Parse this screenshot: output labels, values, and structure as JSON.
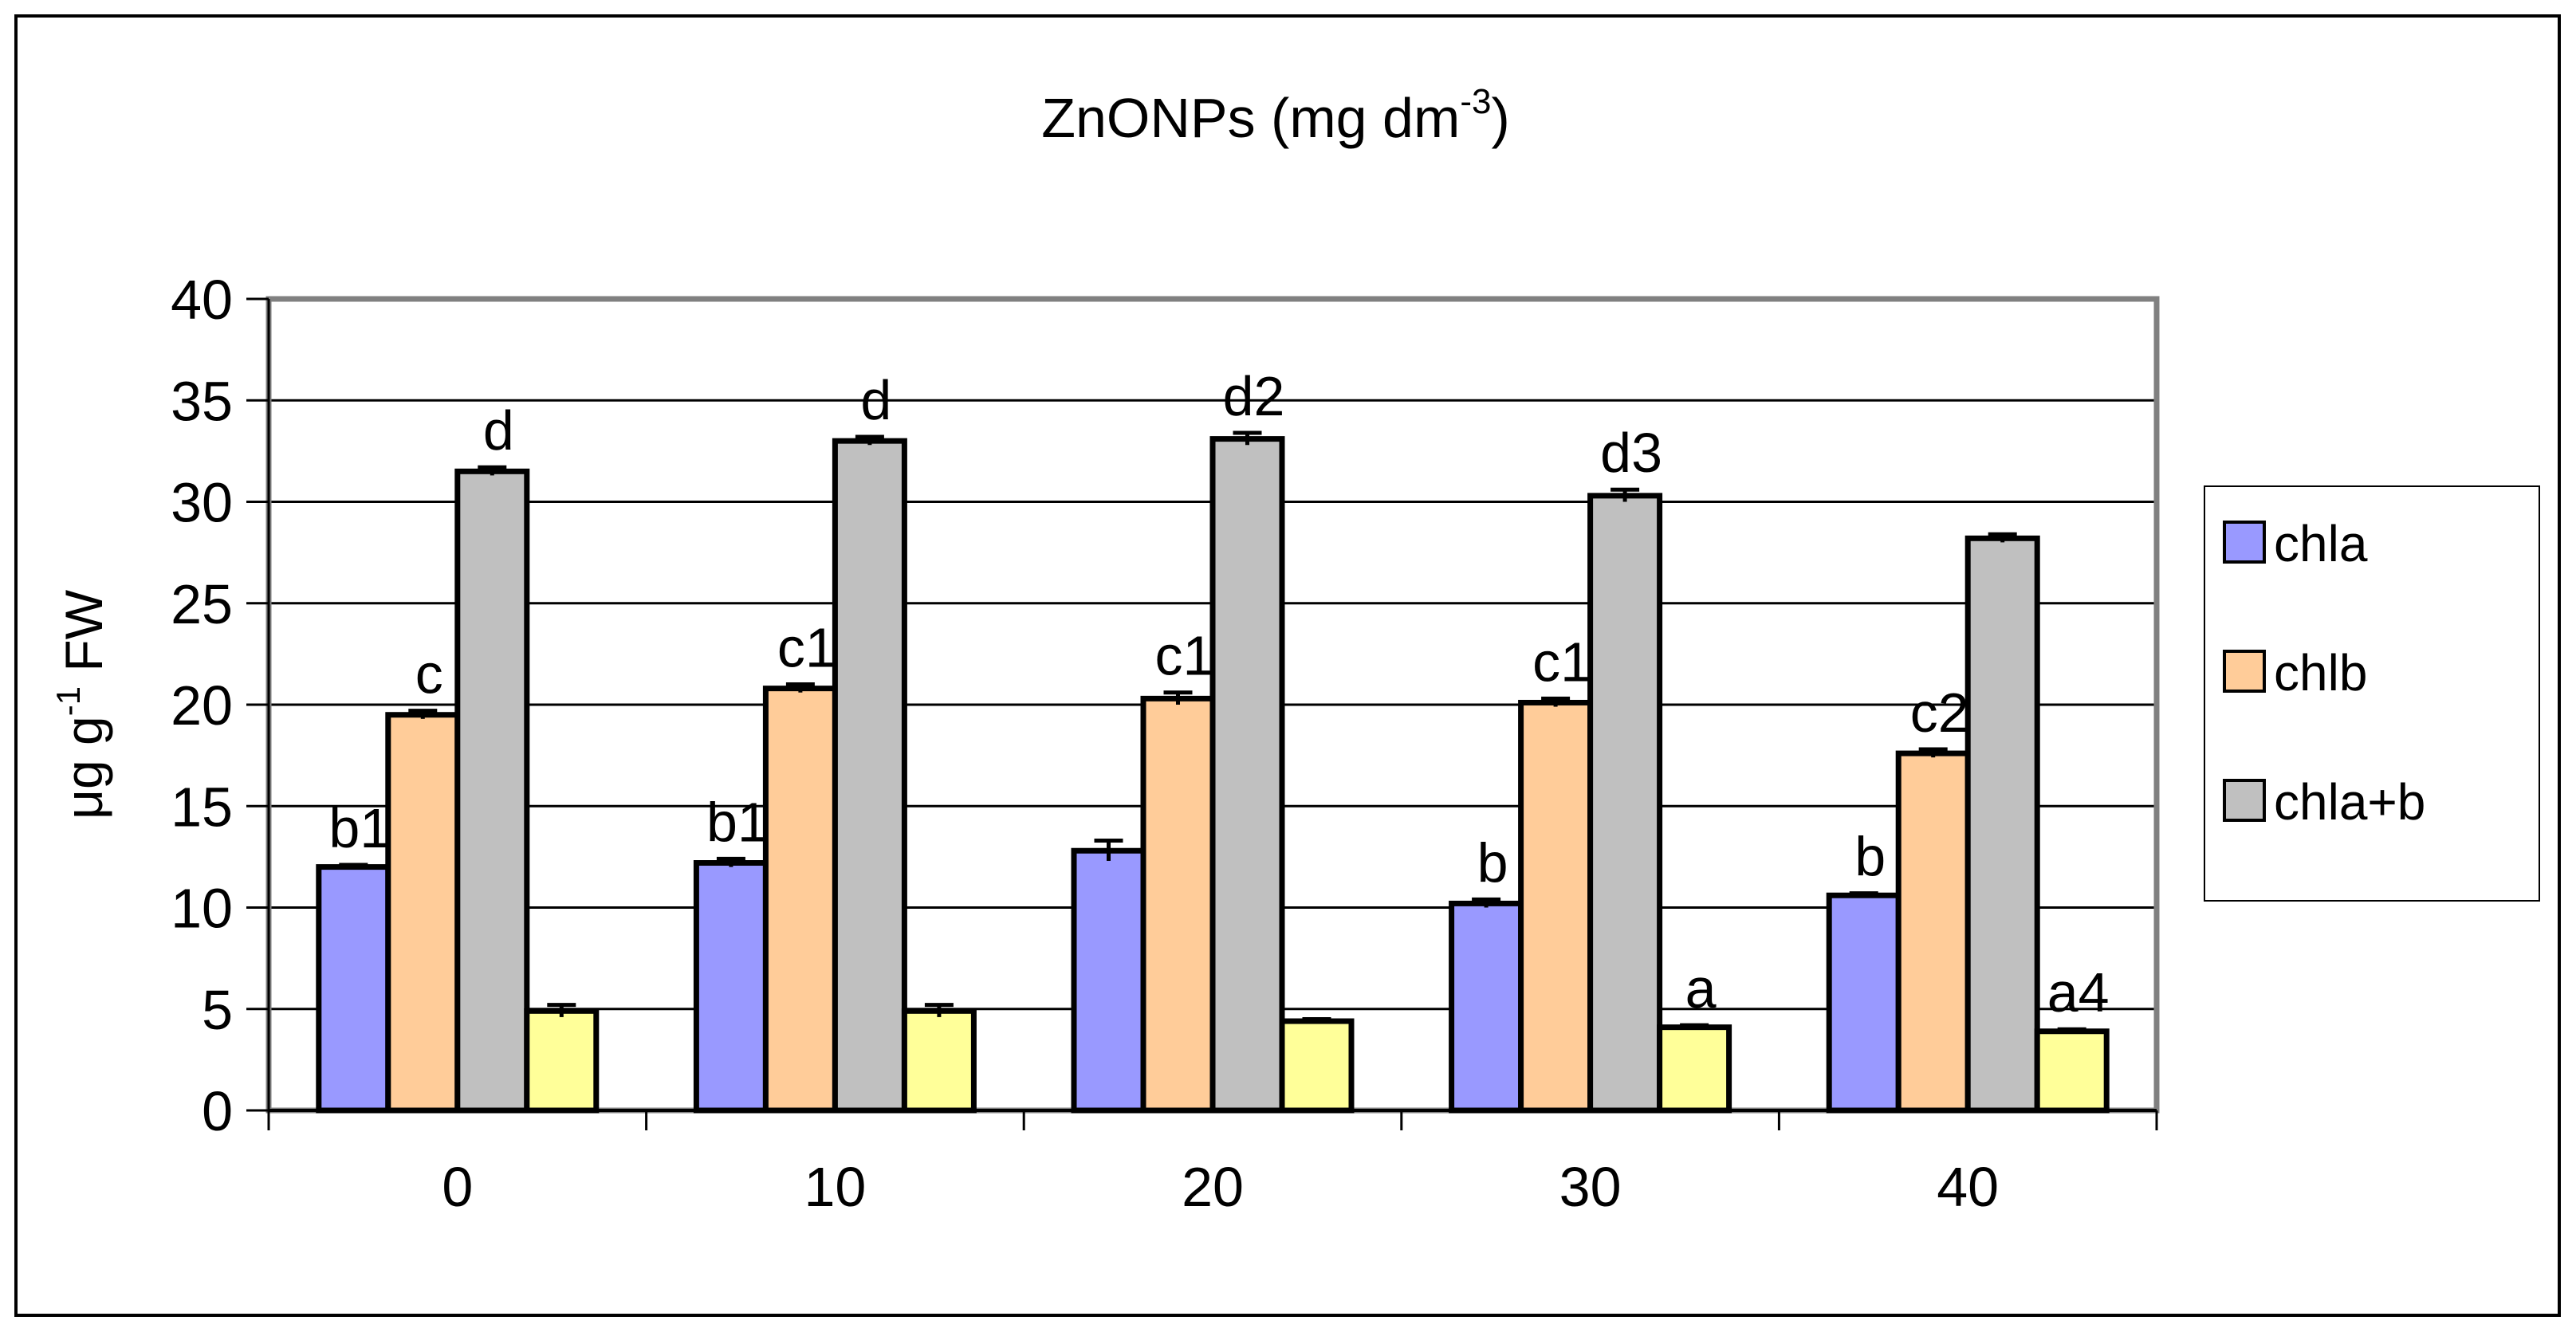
{
  "chart_data": {
    "type": "bar",
    "title": "ZnONPs (mg dm",
    "title_superscript": "-3",
    "title_suffix": ")",
    "ylabel": "μg g",
    "ylabel_superscript": "-1",
    "ylabel_suffix": " FW",
    "xlabel": "",
    "ylim": [
      0,
      40
    ],
    "yticks": [
      "0",
      "5",
      "10",
      "15",
      "20",
      "25",
      "30",
      "35",
      "40"
    ],
    "ytick_values": [
      0,
      5,
      10,
      15,
      20,
      25,
      30,
      35,
      40
    ],
    "grid": true,
    "categories": [
      "0",
      "10",
      "20",
      "30",
      "40"
    ],
    "series": [
      {
        "name": "chla",
        "legend": true,
        "color": "#9999ff",
        "values": [
          12.0,
          12.2,
          12.8,
          10.2,
          10.6
        ],
        "errors": [
          0.1,
          0.2,
          0.5,
          0.2,
          0.1
        ],
        "labels": [
          "b1",
          "b1",
          "",
          "b",
          "b"
        ]
      },
      {
        "name": "chlb",
        "legend": true,
        "color": "#ffcc99",
        "values": [
          19.5,
          20.8,
          20.3,
          20.1,
          17.6
        ],
        "errors": [
          0.2,
          0.2,
          0.3,
          0.2,
          0.2
        ],
        "labels": [
          "c",
          "c1",
          "c1",
          "c1",
          "c2"
        ]
      },
      {
        "name": "chla+b",
        "legend": true,
        "color": "#c0c0c0",
        "values": [
          31.5,
          33.0,
          33.1,
          30.3,
          28.2
        ],
        "errors": [
          0.2,
          0.2,
          0.3,
          0.3,
          0.2
        ],
        "labels": [
          "d",
          "d",
          "d2",
          "d3",
          ""
        ]
      },
      {
        "name": "",
        "legend": false,
        "color": "#ffff99",
        "values": [
          4.9,
          4.9,
          4.4,
          4.1,
          3.9
        ],
        "errors": [
          0.3,
          0.3,
          0.1,
          0.1,
          0.1
        ],
        "labels": [
          "",
          "",
          "",
          "a",
          "a4"
        ]
      }
    ],
    "legend_position": "right"
  }
}
